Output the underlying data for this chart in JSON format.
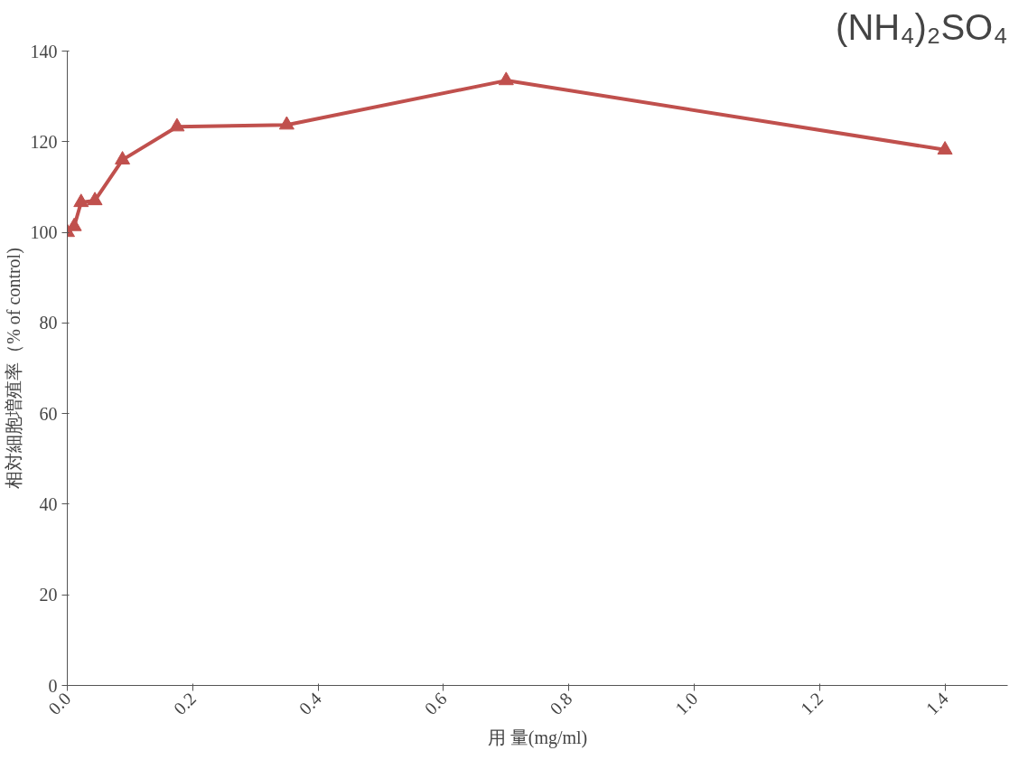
{
  "chart_data": {
    "type": "line",
    "title": "(NH₄)₂SO₄",
    "xlabel": "用 量(mg/ml)",
    "ylabel": "相対細胞増殖率（% of control)",
    "x": [
      0,
      0.011,
      0.022,
      0.044,
      0.088,
      0.175,
      0.35,
      0.7,
      1.4
    ],
    "series": [
      {
        "color": "#c0504d",
        "values": [
          100,
          101.3,
          106.6,
          107,
          116,
          123.3,
          123.7,
          133.5,
          118.2
        ]
      }
    ],
    "xlim": [
      0,
      1.5
    ],
    "ylim": [
      0,
      140
    ],
    "xticks": [
      {
        "value": 0,
        "label": "0.0"
      },
      0.2,
      0.4,
      0.6,
      0.8,
      {
        "value": 1,
        "label": "1.0"
      },
      1.2,
      1.4
    ],
    "yticks": [
      0,
      20,
      40,
      60,
      80,
      100,
      120,
      140
    ],
    "grid": false,
    "marker": "triangle",
    "line_style": "solid"
  }
}
